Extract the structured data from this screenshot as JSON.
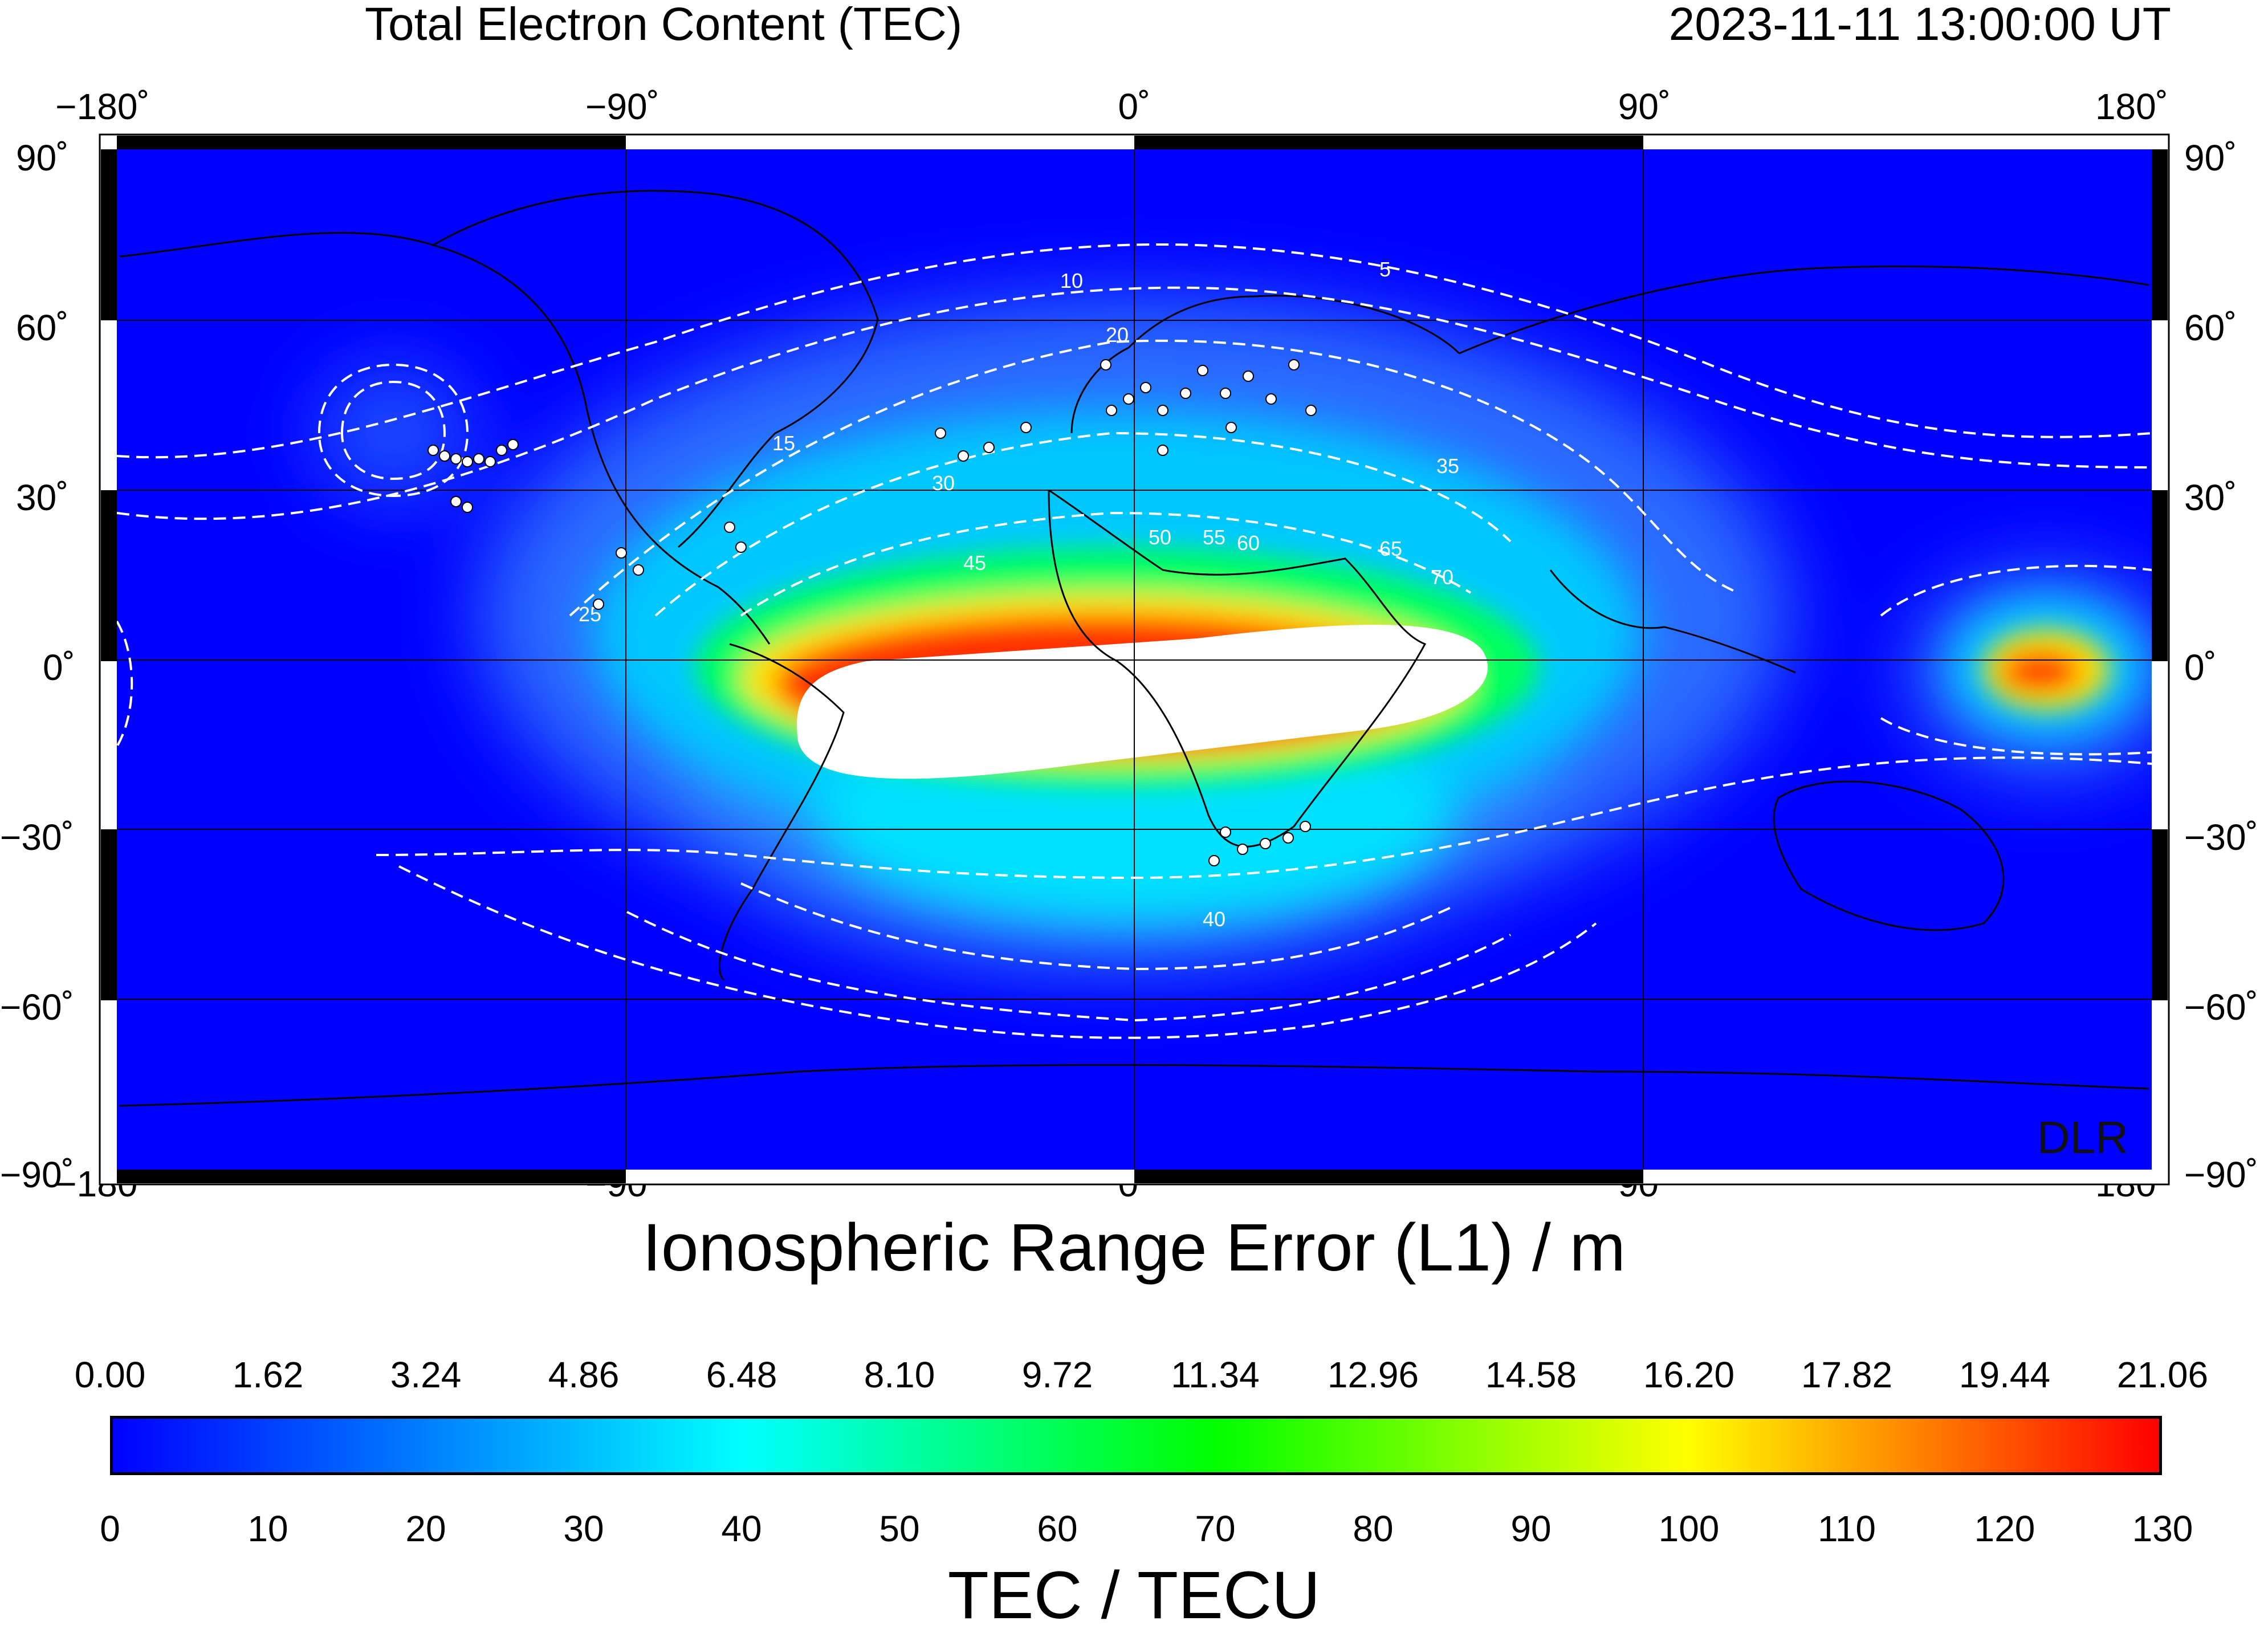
{
  "header": {
    "title": "Total Electron Content (TEC)",
    "timestamp": "2023-11-11  13:00:00 UT"
  },
  "map": {
    "projection": "equirectangular",
    "lon_labels": [
      "−180˚",
      "−90˚",
      "0˚",
      "90˚",
      "180˚"
    ],
    "lat_labels": [
      "90˚",
      "60˚",
      "30˚",
      "0˚",
      "−30˚",
      "−60˚",
      "−90˚"
    ],
    "background_color": "#0000ff",
    "contour_color": "#ffffff",
    "contour_labels": [
      "5",
      "10",
      "15",
      "20",
      "25",
      "30",
      "35",
      "40",
      "45",
      "50",
      "55",
      "60",
      "65",
      "70"
    ],
    "watermark": "DLR",
    "stations_color": "#ffffff"
  },
  "colorbar": {
    "title_top": "Ionospheric Range Error (L1) / m",
    "title_bottom": "TEC / TECU",
    "range_error_ticks": [
      "0.00",
      "1.62",
      "3.24",
      "4.86",
      "6.48",
      "8.10",
      "9.72",
      "11.34",
      "12.96",
      "14.58",
      "16.20",
      "17.82",
      "19.44",
      "21.06"
    ],
    "tec_ticks": [
      "0",
      "10",
      "20",
      "30",
      "40",
      "50",
      "60",
      "70",
      "80",
      "90",
      "100",
      "110",
      "120",
      "130"
    ],
    "colors": [
      "#0000ff",
      "#00ffff",
      "#00ff00",
      "#ffff00",
      "#ff0000"
    ]
  }
}
